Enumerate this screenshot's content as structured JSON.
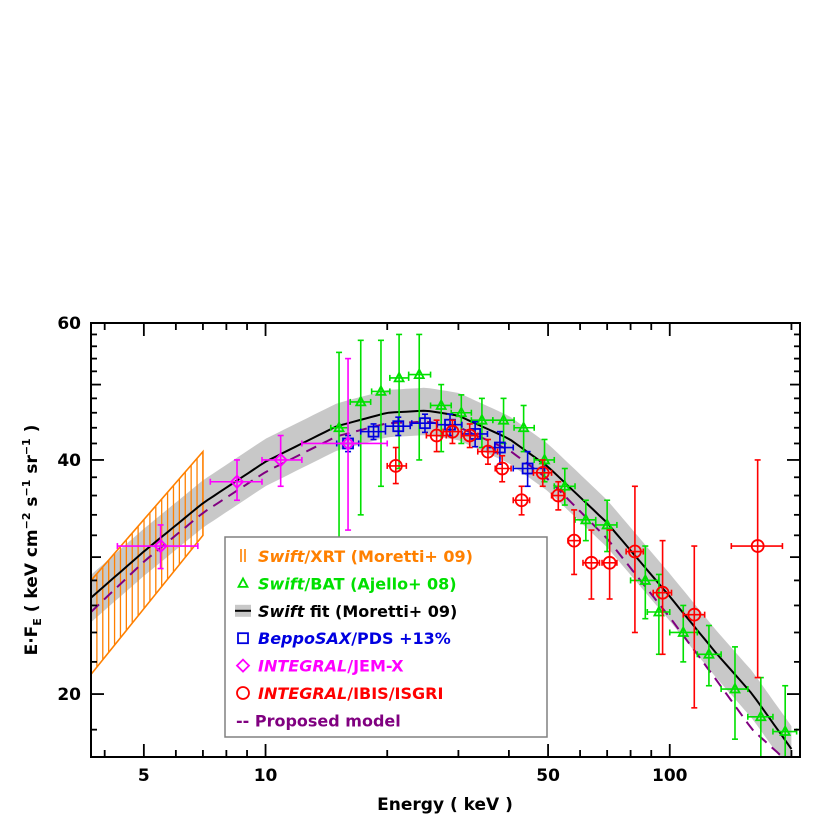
{
  "chart_data": {
    "type": "scatter",
    "title": "",
    "xlabel": "Energy ( keV )",
    "ylabel": "E·F_E ( keV cm^-2 s^-1 sr^-1 )",
    "xscale": "log",
    "yscale": "log",
    "xlim": [
      3.7,
      210
    ],
    "ylim": [
      16.6,
      60
    ],
    "x_ticks": [
      5,
      10,
      50,
      100
    ],
    "y_ticks": [
      20,
      40,
      60
    ],
    "ylabel_parts": {
      "main": "E·F",
      "sub": "E",
      "unit": "( keV cm",
      "exp1": "−2",
      "mid": " s",
      "exp2": "−1",
      "mid2": " sr",
      "exp3": "−1",
      "end": " )"
    },
    "legend_position": "center-left",
    "legend": [
      {
        "italic": "Swift",
        "rest": "/XRT (Moretti+ 09)",
        "color": "#ff8000",
        "marker": "bars"
      },
      {
        "italic": "Swift",
        "rest": "/BAT (Ajello+ 08)",
        "color": "#00e000",
        "marker": "triangle"
      },
      {
        "italic": "Swift",
        "rest": " fit (Moretti+ 09)",
        "color": "#000000",
        "marker": "band"
      },
      {
        "italic": "BeppoSAX",
        "rest": "/PDS +13%",
        "color": "#0000e0",
        "marker": "square"
      },
      {
        "italic": "INTEGRAL",
        "rest": "/JEM-X",
        "color": "#ff00ff",
        "marker": "diamond"
      },
      {
        "italic": "INTEGRAL",
        "rest": "/IBIS/ISGRI",
        "color": "#ff0000",
        "marker": "circle"
      },
      {
        "italic": "",
        "rest": "-- Proposed model",
        "color": "#800080",
        "marker": "dash"
      }
    ],
    "colors": {
      "xrt": "#ff8000",
      "bat": "#00e000",
      "fit": "#000000",
      "band": "#c8c8c8",
      "pds": "#0000e0",
      "jemx": "#ff00ff",
      "isgri": "#ff0000",
      "model": "#800080"
    },
    "series": [
      {
        "key": "xrt",
        "kind": "band",
        "x_range": [
          3.7,
          7.0
        ],
        "lower": [
          {
            "x": 3.7,
            "y": 21.2
          },
          {
            "x": 7.0,
            "y": 32.0
          }
        ],
        "upper": [
          {
            "x": 3.7,
            "y": 28.0
          },
          {
            "x": 7.0,
            "y": 41.0
          }
        ]
      },
      {
        "key": "fit",
        "kind": "curve",
        "points": [
          {
            "x": 3.7,
            "y": 26.6
          },
          {
            "x": 5,
            "y": 30.5
          },
          {
            "x": 7,
            "y": 35.2
          },
          {
            "x": 10,
            "y": 39.8
          },
          {
            "x": 15,
            "y": 44.2
          },
          {
            "x": 20,
            "y": 46.0
          },
          {
            "x": 25,
            "y": 46.3
          },
          {
            "x": 30,
            "y": 45.6
          },
          {
            "x": 40,
            "y": 42.6
          },
          {
            "x": 50,
            "y": 39.2
          },
          {
            "x": 70,
            "y": 33.2
          },
          {
            "x": 100,
            "y": 26.7
          },
          {
            "x": 130,
            "y": 22.6
          },
          {
            "x": 160,
            "y": 20.0
          },
          {
            "x": 200,
            "y": 17.0
          }
        ],
        "band_halfwidth_ratio": 0.07
      },
      {
        "key": "model",
        "kind": "curve",
        "points": [
          {
            "x": 3.7,
            "y": 25.5
          },
          {
            "x": 5,
            "y": 29.6
          },
          {
            "x": 7,
            "y": 34.2
          },
          {
            "x": 10,
            "y": 38.6
          },
          {
            "x": 15,
            "y": 42.9
          },
          {
            "x": 20,
            "y": 44.6
          },
          {
            "x": 25,
            "y": 44.8
          },
          {
            "x": 30,
            "y": 44.1
          },
          {
            "x": 40,
            "y": 41.2
          },
          {
            "x": 50,
            "y": 37.8
          },
          {
            "x": 70,
            "y": 31.7
          },
          {
            "x": 100,
            "y": 25.1
          },
          {
            "x": 130,
            "y": 20.9
          },
          {
            "x": 160,
            "y": 18.0
          },
          {
            "x": 190,
            "y": 16.6
          }
        ]
      },
      {
        "key": "bat",
        "kind": "points",
        "marker": "triangle",
        "points": [
          {
            "x": 15.2,
            "xerr": [
              14.5,
              16.0
            ],
            "y": 44.0,
            "yerr": [
              31.5,
              55.0
            ]
          },
          {
            "x": 17.2,
            "xerr": [
              16.2,
              18.2
            ],
            "y": 47.5,
            "yerr": [
              34.0,
              57.0
            ]
          },
          {
            "x": 19.3,
            "xerr": [
              18.3,
              20.3
            ],
            "y": 49.0,
            "yerr": [
              37.0,
              57.0
            ]
          },
          {
            "x": 21.4,
            "xerr": [
              20.3,
              22.6
            ],
            "y": 51.0,
            "yerr": [
              39.0,
              58.0
            ]
          },
          {
            "x": 24.0,
            "xerr": [
              22.6,
              25.6
            ],
            "y": 51.5,
            "yerr": [
              40.0,
              58.0
            ]
          },
          {
            "x": 27.2,
            "xerr": [
              25.6,
              28.8
            ],
            "y": 47.0,
            "yerr": [
              41.0,
              50.0
            ]
          },
          {
            "x": 30.5,
            "xerr": [
              28.8,
              32.3
            ],
            "y": 46.0,
            "yerr": [
              42.0,
              48.5
            ]
          },
          {
            "x": 34.3,
            "xerr": [
              32.3,
              36.5
            ],
            "y": 45.0,
            "yerr": [
              41.5,
              48.0
            ]
          },
          {
            "x": 38.8,
            "xerr": [
              36.5,
              41.2
            ],
            "y": 45.0,
            "yerr": [
              42.0,
              48.0
            ]
          },
          {
            "x": 43.5,
            "xerr": [
              41.2,
              46.2
            ],
            "y": 44.0,
            "yerr": [
              41.0,
              47.0
            ]
          },
          {
            "x": 49.0,
            "xerr": [
              46.2,
              51.8
            ],
            "y": 40.0,
            "yerr": [
              37.5,
              42.5
            ]
          },
          {
            "x": 55.0,
            "xerr": [
              51.8,
              58.3
            ],
            "y": 37.0,
            "yerr": [
              35.0,
              39.0
            ]
          },
          {
            "x": 62.0,
            "xerr": [
              58.3,
              65.6
            ],
            "y": 33.5,
            "yerr": [
              31.5,
              35.5
            ]
          },
          {
            "x": 70.0,
            "xerr": [
              65.6,
              74.0
            ],
            "y": 33.0,
            "yerr": [
              30.5,
              35.5
            ]
          },
          {
            "x": 87.0,
            "xerr": [
              80.0,
              94.0
            ],
            "y": 28.0,
            "yerr": [
              25.0,
              31.0
            ]
          },
          {
            "x": 94.0,
            "xerr": [
              88.0,
              100.0
            ],
            "y": 25.5,
            "yerr": [
              22.5,
              28.5
            ]
          },
          {
            "x": 108.0,
            "xerr": [
              100.0,
              117.0
            ],
            "y": 24.0,
            "yerr": [
              22.0,
              26.0
            ]
          },
          {
            "x": 125.0,
            "xerr": [
              117.0,
              134.0
            ],
            "y": 22.5,
            "yerr": [
              20.5,
              24.5
            ]
          },
          {
            "x": 145.0,
            "xerr": [
              134.0,
              156.0
            ],
            "y": 20.3,
            "yerr": [
              17.5,
              23.0
            ]
          },
          {
            "x": 168.0,
            "xerr": [
              156.0,
              180.0
            ],
            "y": 18.7,
            "yerr": [
              16.3,
              21.0
            ]
          },
          {
            "x": 193.0,
            "xerr": [
              180.0,
              206.0
            ],
            "y": 17.9,
            "yerr": [
              14.5,
              20.5
            ]
          }
        ]
      },
      {
        "key": "pds",
        "kind": "points",
        "marker": "square",
        "points": [
          {
            "x": 16.0,
            "xerr": [
              15.0,
              17.0
            ],
            "y": 42.0,
            "yerr": [
              41.0,
              43.0
            ]
          },
          {
            "x": 18.5,
            "xerr": [
              17.2,
              19.8
            ],
            "y": 43.5,
            "yerr": [
              42.5,
              44.5
            ]
          },
          {
            "x": 21.3,
            "xerr": [
              19.8,
              22.8
            ],
            "y": 44.2,
            "yerr": [
              43.0,
              45.4
            ]
          },
          {
            "x": 24.8,
            "xerr": [
              23.0,
              26.6
            ],
            "y": 44.6,
            "yerr": [
              43.4,
              45.8
            ]
          },
          {
            "x": 28.6,
            "xerr": [
              26.6,
              30.6
            ],
            "y": 44.4,
            "yerr": [
              43.0,
              45.8
            ]
          },
          {
            "x": 33.0,
            "xerr": [
              30.6,
              35.4
            ],
            "y": 43.2,
            "yerr": [
              41.6,
              44.8
            ]
          },
          {
            "x": 38.0,
            "xerr": [
              35.4,
              41.0
            ],
            "y": 41.5,
            "yerr": [
              39.5,
              43.5
            ]
          },
          {
            "x": 44.5,
            "xerr": [
              41.0,
              49.0
            ],
            "y": 39.0,
            "yerr": [
              37.0,
              41.0
            ]
          }
        ]
      },
      {
        "key": "jemx",
        "kind": "points",
        "marker": "diamond",
        "points": [
          {
            "x": 5.5,
            "xerr": [
              4.3,
              6.8
            ],
            "y": 31.0,
            "yerr": [
              29.0,
              33.0
            ]
          },
          {
            "x": 8.5,
            "xerr": [
              7.3,
              9.8
            ],
            "y": 37.5,
            "yerr": [
              35.5,
              40.0
            ]
          },
          {
            "x": 10.9,
            "xerr": [
              9.8,
              12.3
            ],
            "y": 40.0,
            "yerr": [
              37.0,
              43.0
            ]
          },
          {
            "x": 16.0,
            "xerr": [
              12.3,
              20.0
            ],
            "y": 42.0,
            "yerr": [
              32.5,
              54.0
            ]
          }
        ]
      },
      {
        "key": "isgri",
        "kind": "points",
        "marker": "circle",
        "points": [
          {
            "x": 21.0,
            "xerr": [
              20.0,
              22.3
            ],
            "y": 39.3,
            "yerr": [
              37.3,
              41.5
            ]
          },
          {
            "x": 26.5,
            "xerr": [
              25.0,
              28.0
            ],
            "y": 43.0,
            "yerr": [
              41.0,
              45.0
            ]
          },
          {
            "x": 29.0,
            "xerr": [
              27.5,
              30.5
            ],
            "y": 43.5,
            "yerr": [
              42.0,
              45.0
            ]
          },
          {
            "x": 32.0,
            "xerr": [
              30.5,
              33.5
            ],
            "y": 43.0,
            "yerr": [
              41.5,
              44.5
            ]
          },
          {
            "x": 35.5,
            "xerr": [
              33.5,
              37.5
            ],
            "y": 41.0,
            "yerr": [
              39.5,
              42.5
            ]
          },
          {
            "x": 38.5,
            "xerr": [
              37.0,
              40.5
            ],
            "y": 39.0,
            "yerr": [
              37.5,
              40.5
            ]
          },
          {
            "x": 43.0,
            "xerr": [
              41.0,
              45.0
            ],
            "y": 35.5,
            "yerr": [
              34.0,
              37.0
            ]
          },
          {
            "x": 48.5,
            "xerr": [
              46.0,
              51.0
            ],
            "y": 38.5,
            "yerr": [
              37.0,
              40.0
            ]
          },
          {
            "x": 53.0,
            "xerr": [
              51.0,
              55.0
            ],
            "y": 36.0,
            "yerr": [
              34.5,
              37.5
            ]
          },
          {
            "x": 58.0,
            "xerr": [
              56.0,
              60.0
            ],
            "y": 31.5,
            "yerr": [
              28.5,
              34.5
            ]
          },
          {
            "x": 64.0,
            "xerr": [
              61.0,
              67.0
            ],
            "y": 29.5,
            "yerr": [
              26.5,
              32.5
            ]
          },
          {
            "x": 71.0,
            "xerr": [
              68.0,
              74.0
            ],
            "y": 29.5,
            "yerr": [
              26.5,
              32.5
            ]
          },
          {
            "x": 82.0,
            "xerr": [
              78.0,
              86.0
            ],
            "y": 30.5,
            "yerr": [
              24.0,
              37.0
            ]
          },
          {
            "x": 96.0,
            "xerr": [
              91.0,
              101.0
            ],
            "y": 27.0,
            "yerr": [
              22.5,
              31.5
            ]
          },
          {
            "x": 115.0,
            "xerr": [
              108.0,
              122.0
            ],
            "y": 25.3,
            "yerr": [
              19.2,
              31.0
            ]
          },
          {
            "x": 165.0,
            "xerr": [
              142.0,
              190.0
            ],
            "y": 31.0,
            "yerr": [
              21.0,
              40.0
            ]
          }
        ]
      }
    ]
  }
}
